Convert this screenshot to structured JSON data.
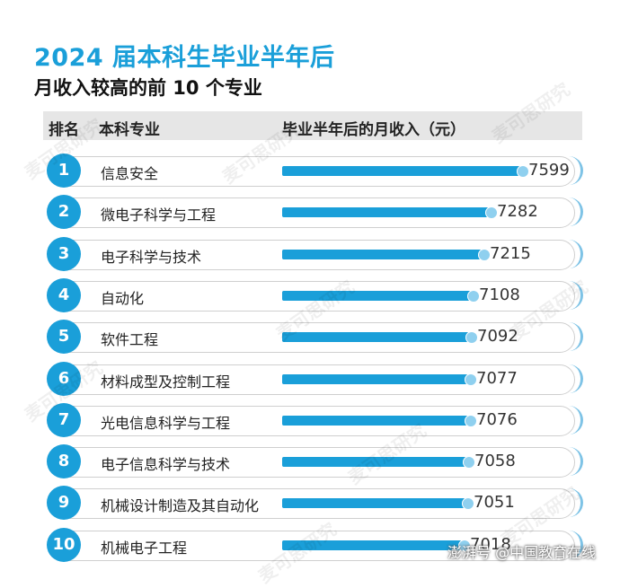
{
  "title": "2024 届本科生毕业半年后",
  "subtitle": "月收入较高的前 10 个专业",
  "header": {
    "rank": "排名",
    "major": "本科专业",
    "income": "毕业半年后的月收入（元）"
  },
  "watermark": "麦可思研究",
  "source": "澎湃号 @中国教育在线",
  "colors": {
    "accent": "#1a9fd9",
    "dot": "#8fd0ef",
    "header_bg": "#e6e6e6"
  },
  "chart_data": {
    "type": "bar",
    "orientation": "horizontal",
    "title": "2024 届本科生毕业半年后",
    "subtitle": "月收入较高的前 10 个专业",
    "ranks": [
      "1",
      "2",
      "3",
      "4",
      "5",
      "6",
      "7",
      "8",
      "9",
      "10"
    ],
    "categories": [
      "信息安全",
      "微电子科学与工程",
      "电子科学与技术",
      "自动化",
      "软件工程",
      "材料成型及控制工程",
      "光电信息科学与工程",
      "电子信息科学与技术",
      "机械设计制造及其自动化",
      "机械电子工程"
    ],
    "values": [
      7599,
      7282,
      7215,
      7108,
      7092,
      7077,
      7076,
      7058,
      7051,
      7018
    ],
    "value_labels": [
      "7599",
      "7282",
      "7215",
      "7108",
      "7092",
      "7077",
      "7076",
      "7058",
      "7051",
      "7018"
    ],
    "column_header": "毕业半年后的月收入（元）"
  }
}
